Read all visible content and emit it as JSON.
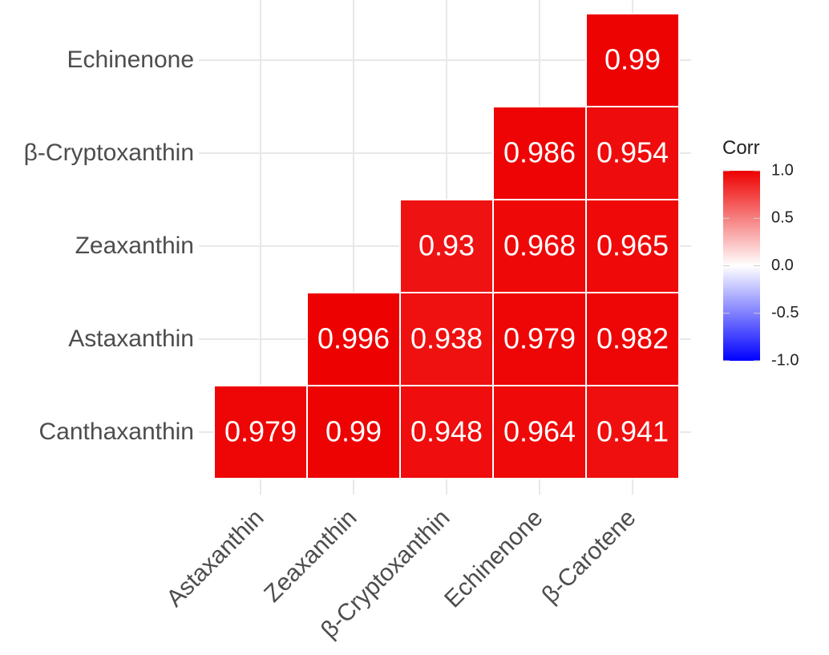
{
  "chart_data": {
    "type": "heatmap",
    "title": "",
    "xlabel": "",
    "ylabel": "",
    "x_categories": [
      "Astaxanthin",
      "Zeaxanthin",
      "β-Cryptoxanthin",
      "Echinenone",
      "β-Carotene"
    ],
    "y_categories": [
      "Canthaxanthin",
      "Astaxanthin",
      "Zeaxanthin",
      "β-Cryptoxanthin",
      "Echinenone"
    ],
    "cells": [
      {
        "x": "Astaxanthin",
        "y": "Canthaxanthin",
        "value": 0.979,
        "label": "0.979"
      },
      {
        "x": "Zeaxanthin",
        "y": "Canthaxanthin",
        "value": 0.99,
        "label": "0.99"
      },
      {
        "x": "β-Cryptoxanthin",
        "y": "Canthaxanthin",
        "value": 0.948,
        "label": "0.948"
      },
      {
        "x": "Echinenone",
        "y": "Canthaxanthin",
        "value": 0.964,
        "label": "0.964"
      },
      {
        "x": "β-Carotene",
        "y": "Canthaxanthin",
        "value": 0.941,
        "label": "0.941"
      },
      {
        "x": "Zeaxanthin",
        "y": "Astaxanthin",
        "value": 0.996,
        "label": "0.996"
      },
      {
        "x": "β-Cryptoxanthin",
        "y": "Astaxanthin",
        "value": 0.938,
        "label": "0.938"
      },
      {
        "x": "Echinenone",
        "y": "Astaxanthin",
        "value": 0.979,
        "label": "0.979"
      },
      {
        "x": "β-Carotene",
        "y": "Astaxanthin",
        "value": 0.982,
        "label": "0.982"
      },
      {
        "x": "β-Cryptoxanthin",
        "y": "Zeaxanthin",
        "value": 0.93,
        "label": "0.93"
      },
      {
        "x": "Echinenone",
        "y": "Zeaxanthin",
        "value": 0.968,
        "label": "0.968"
      },
      {
        "x": "β-Carotene",
        "y": "Zeaxanthin",
        "value": 0.965,
        "label": "0.965"
      },
      {
        "x": "Echinenone",
        "y": "β-Cryptoxanthin",
        "value": 0.986,
        "label": "0.986"
      },
      {
        "x": "β-Carotene",
        "y": "β-Cryptoxanthin",
        "value": 0.954,
        "label": "0.954"
      },
      {
        "x": "β-Carotene",
        "y": "Echinenone",
        "value": 0.99,
        "label": "0.99"
      }
    ],
    "legend": {
      "title": "Corr",
      "range": [
        -1,
        1
      ],
      "ticks": [
        1.0,
        0.5,
        0.0,
        -0.5,
        -1.0
      ],
      "tick_labels": [
        "1.0",
        "0.5",
        "0.0",
        "-0.5",
        "-1.0"
      ],
      "colors": {
        "low": "#0000ff",
        "mid": "#ffffff",
        "high": "#ee0000"
      },
      "position": "right"
    }
  }
}
